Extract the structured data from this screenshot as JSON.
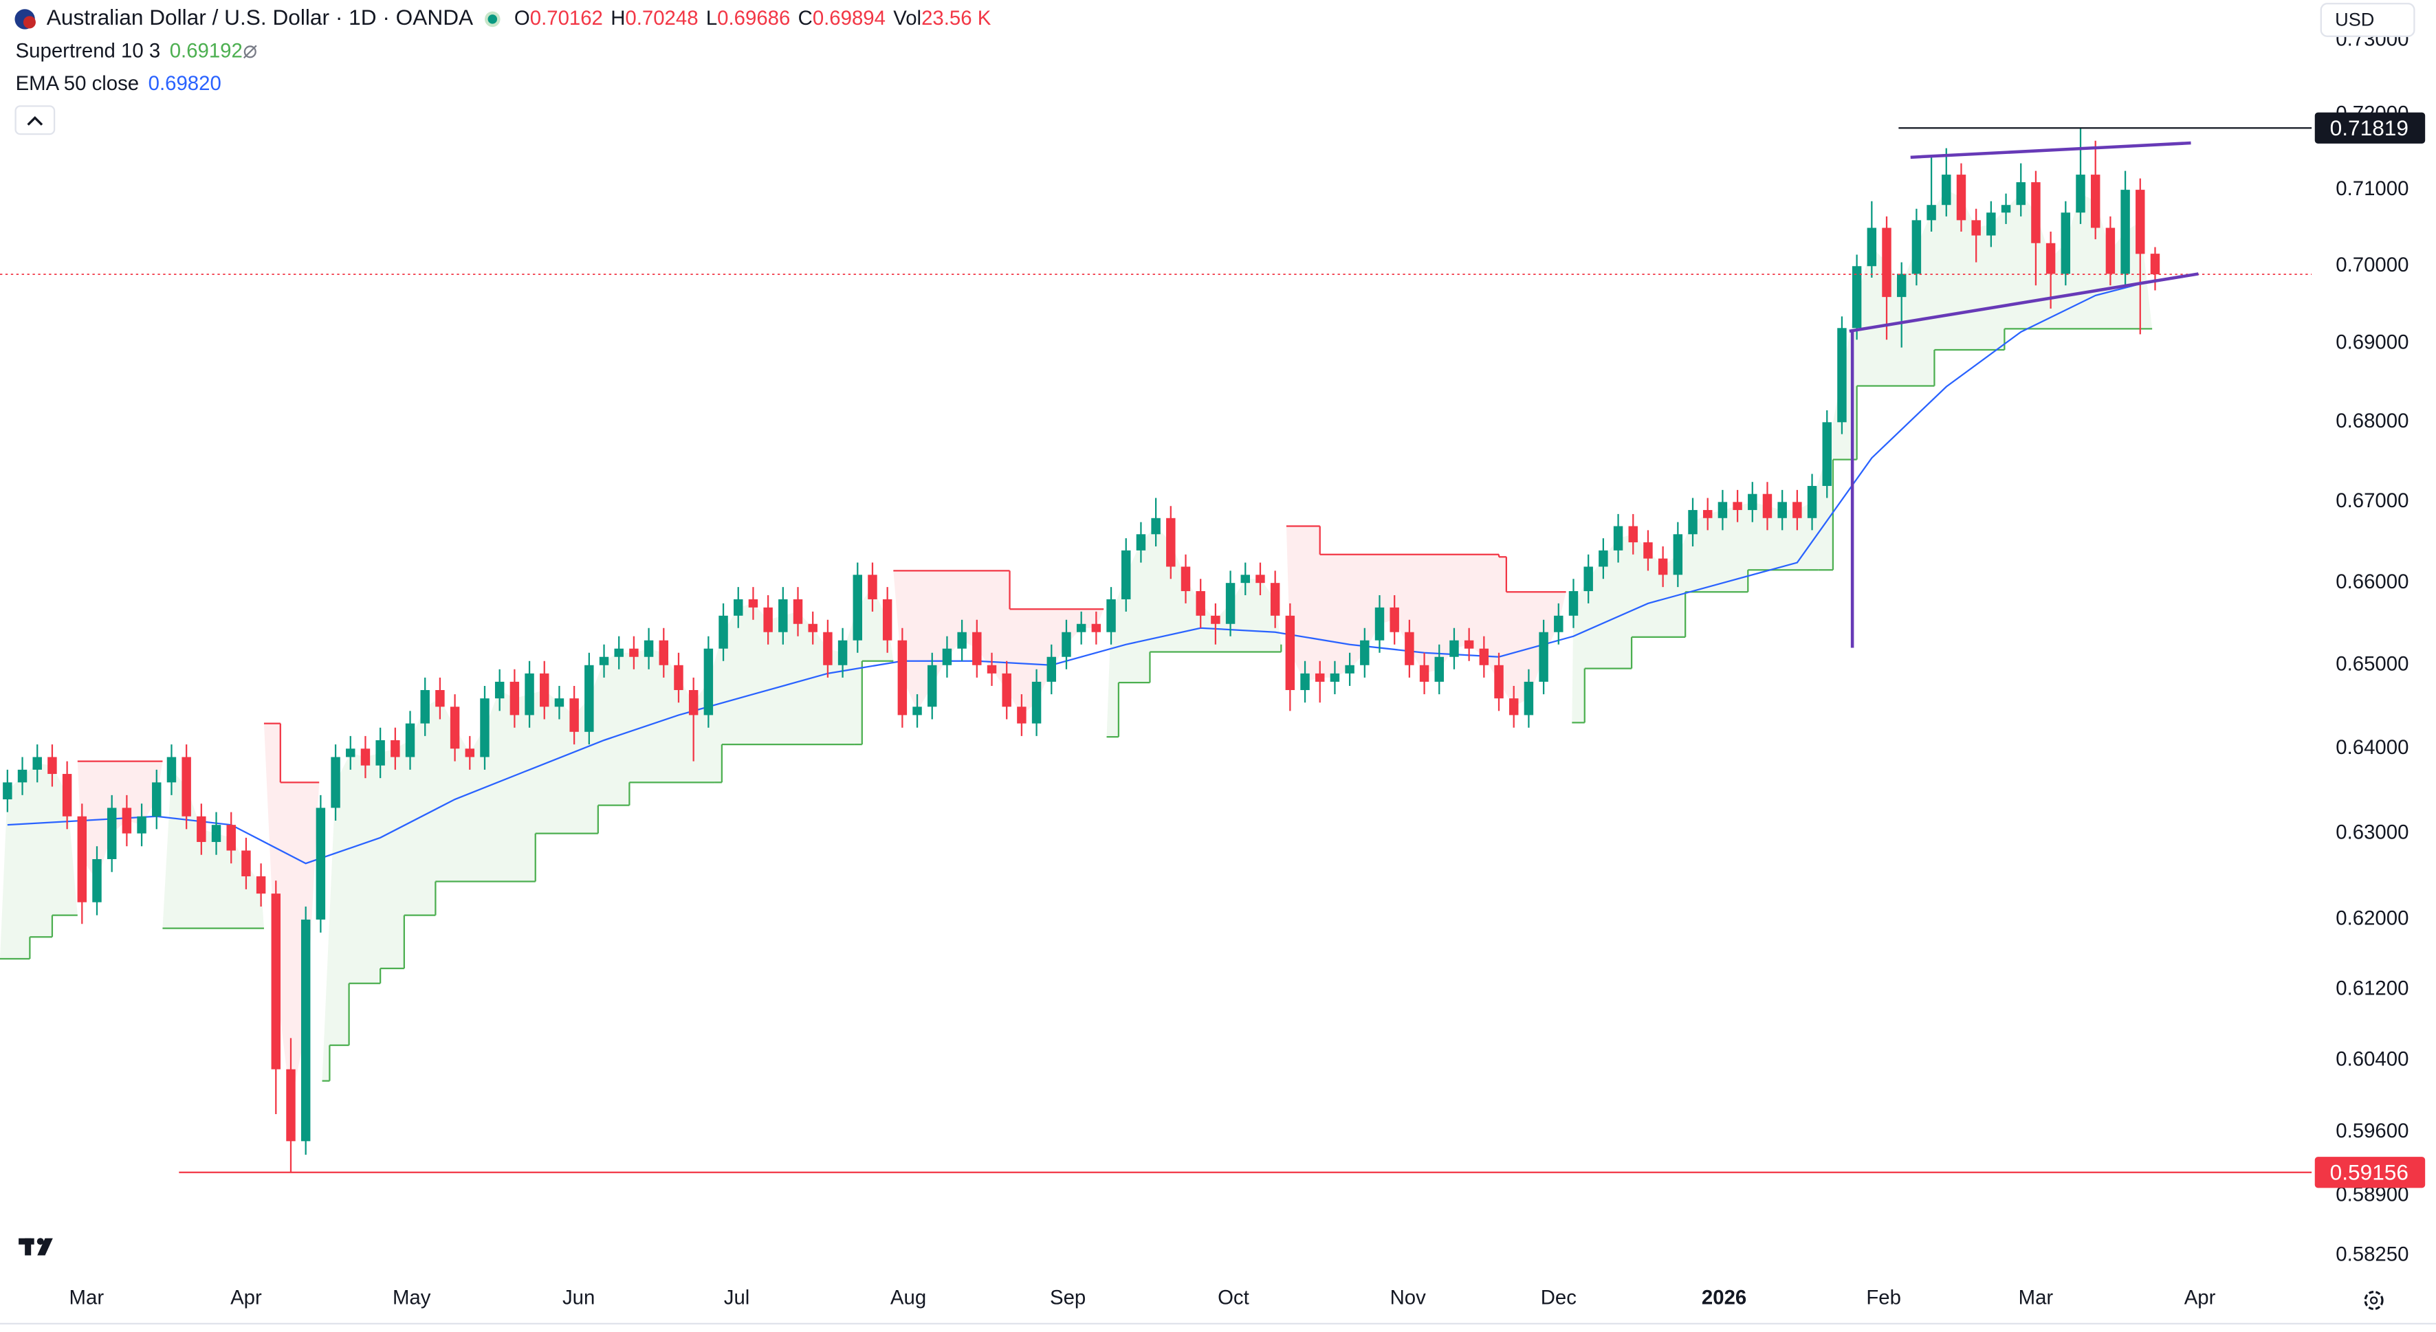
{
  "header": {
    "symbol": "Australian Dollar / U.S. Dollar · 1D · OANDA",
    "ohlc": [
      {
        "label": "O",
        "value": "0.70162"
      },
      {
        "label": "H",
        "value": "0.70248"
      },
      {
        "label": "L",
        "value": "0.69686"
      },
      {
        "label": "C",
        "value": "0.69894"
      },
      {
        "label": "Vol",
        "value": "23.56 K"
      }
    ],
    "indicators": [
      {
        "name": "Supertrend 10 3",
        "value": "0.69192",
        "color": "#4caf50"
      },
      {
        "name": "EMA 50 close",
        "value": "0.69820",
        "color": "#2962ff"
      }
    ],
    "currency": "USD"
  },
  "chart_data": {
    "type": "candlestick",
    "log_scale": true,
    "grid": false,
    "up_color": "#089981",
    "down_color": "#f23645",
    "xlim": [
      -0.5,
      154.5
    ],
    "ylim": [
      0.5805,
      0.7354
    ],
    "xticks": [
      {
        "value": 5.3,
        "label": "Mar"
      },
      {
        "value": 16,
        "label": "Apr"
      },
      {
        "value": 27.1,
        "label": "May"
      },
      {
        "value": 38.3,
        "label": "Jun"
      },
      {
        "value": 48.9,
        "label": "Jul"
      },
      {
        "value": 60.4,
        "label": "Aug"
      },
      {
        "value": 71.1,
        "label": "Sep"
      },
      {
        "value": 82.2,
        "label": "Oct"
      },
      {
        "value": 93.9,
        "label": "Nov"
      },
      {
        "value": 104,
        "label": "Dec"
      },
      {
        "value": 115.1,
        "label": "2026"
      },
      {
        "value": 125.8,
        "label": "Feb"
      },
      {
        "value": 136,
        "label": "Mar"
      },
      {
        "value": 147,
        "label": "Apr"
      }
    ],
    "yticks": [
      {
        "value": 0.5825,
        "label": "0.58250"
      },
      {
        "value": 0.589,
        "label": "0.58900"
      },
      {
        "value": 0.596,
        "label": "0.59600"
      },
      {
        "value": 0.604,
        "label": "0.60400"
      },
      {
        "value": 0.612,
        "label": "0.61200"
      },
      {
        "value": 0.62,
        "label": "0.62000"
      },
      {
        "value": 0.63,
        "label": "0.63000"
      },
      {
        "value": 0.64,
        "label": "0.64000"
      },
      {
        "value": 0.65,
        "label": "0.65000"
      },
      {
        "value": 0.66,
        "label": "0.66000"
      },
      {
        "value": 0.67,
        "label": "0.67000"
      },
      {
        "value": 0.68,
        "label": "0.68000"
      },
      {
        "value": 0.69,
        "label": "0.69000"
      },
      {
        "value": 0.7,
        "label": "0.70000"
      },
      {
        "value": 0.71,
        "label": "0.71000"
      },
      {
        "value": 0.72,
        "label": "0.72000"
      },
      {
        "value": 0.73,
        "label": "0.73000"
      }
    ],
    "ohlc": [
      [
        0.634,
        0.6375,
        0.6325,
        0.636
      ],
      [
        0.636,
        0.639,
        0.6345,
        0.6375
      ],
      [
        0.6375,
        0.6405,
        0.636,
        0.639
      ],
      [
        0.639,
        0.6405,
        0.6355,
        0.637
      ],
      [
        0.637,
        0.6385,
        0.6305,
        0.632
      ],
      [
        0.632,
        0.6335,
        0.6195,
        0.622
      ],
      [
        0.622,
        0.6285,
        0.6205,
        0.627
      ],
      [
        0.627,
        0.6345,
        0.6255,
        0.633
      ],
      [
        0.633,
        0.6345,
        0.6285,
        0.63
      ],
      [
        0.63,
        0.6335,
        0.6285,
        0.632
      ],
      [
        0.632,
        0.6375,
        0.6305,
        0.636
      ],
      [
        0.636,
        0.6405,
        0.6345,
        0.639
      ],
      [
        0.639,
        0.6405,
        0.6305,
        0.632
      ],
      [
        0.632,
        0.6335,
        0.6275,
        0.629
      ],
      [
        0.629,
        0.6325,
        0.6275,
        0.631
      ],
      [
        0.631,
        0.6325,
        0.6265,
        0.628
      ],
      [
        0.628,
        0.6295,
        0.6235,
        0.625
      ],
      [
        0.625,
        0.6265,
        0.6215,
        0.623
      ],
      [
        0.623,
        0.6245,
        0.598,
        0.603
      ],
      [
        0.603,
        0.6065,
        0.5916,
        0.595
      ],
      [
        0.595,
        0.6215,
        0.5935,
        0.62
      ],
      [
        0.62,
        0.6345,
        0.6185,
        0.633
      ],
      [
        0.633,
        0.6405,
        0.6315,
        0.639
      ],
      [
        0.639,
        0.6415,
        0.6375,
        0.64
      ],
      [
        0.64,
        0.6415,
        0.6365,
        0.638
      ],
      [
        0.638,
        0.6425,
        0.6365,
        0.641
      ],
      [
        0.641,
        0.6425,
        0.6375,
        0.639
      ],
      [
        0.639,
        0.6445,
        0.6375,
        0.643
      ],
      [
        0.643,
        0.6485,
        0.6415,
        0.647
      ],
      [
        0.647,
        0.6485,
        0.6435,
        0.645
      ],
      [
        0.645,
        0.6465,
        0.6385,
        0.64
      ],
      [
        0.64,
        0.6415,
        0.6375,
        0.639
      ],
      [
        0.639,
        0.6475,
        0.6375,
        0.646
      ],
      [
        0.646,
        0.6495,
        0.6445,
        0.648
      ],
      [
        0.648,
        0.6495,
        0.6425,
        0.644
      ],
      [
        0.644,
        0.6505,
        0.6425,
        0.649
      ],
      [
        0.649,
        0.6505,
        0.6435,
        0.645
      ],
      [
        0.645,
        0.6475,
        0.6435,
        0.646
      ],
      [
        0.646,
        0.6475,
        0.6405,
        0.642
      ],
      [
        0.642,
        0.6515,
        0.6405,
        0.65
      ],
      [
        0.65,
        0.6525,
        0.6485,
        0.651
      ],
      [
        0.651,
        0.6535,
        0.6495,
        0.652
      ],
      [
        0.652,
        0.6535,
        0.6495,
        0.651
      ],
      [
        0.651,
        0.6545,
        0.6495,
        0.653
      ],
      [
        0.653,
        0.6545,
        0.6485,
        0.65
      ],
      [
        0.65,
        0.6515,
        0.6455,
        0.647
      ],
      [
        0.647,
        0.6485,
        0.6385,
        0.644
      ],
      [
        0.644,
        0.6535,
        0.6425,
        0.652
      ],
      [
        0.652,
        0.6575,
        0.6505,
        0.656
      ],
      [
        0.656,
        0.6595,
        0.6545,
        0.658
      ],
      [
        0.658,
        0.6595,
        0.6555,
        0.657
      ],
      [
        0.657,
        0.6585,
        0.6525,
        0.654
      ],
      [
        0.654,
        0.6595,
        0.6525,
        0.658
      ],
      [
        0.658,
        0.6595,
        0.6535,
        0.655
      ],
      [
        0.655,
        0.6565,
        0.6525,
        0.654
      ],
      [
        0.654,
        0.6555,
        0.6485,
        0.65
      ],
      [
        0.65,
        0.6545,
        0.6485,
        0.653
      ],
      [
        0.653,
        0.6625,
        0.6515,
        0.661
      ],
      [
        0.661,
        0.6625,
        0.6565,
        0.658
      ],
      [
        0.658,
        0.6595,
        0.6515,
        0.653
      ],
      [
        0.653,
        0.6545,
        0.6425,
        0.644
      ],
      [
        0.644,
        0.6465,
        0.6425,
        0.645
      ],
      [
        0.645,
        0.6515,
        0.6435,
        0.65
      ],
      [
        0.65,
        0.6535,
        0.6485,
        0.652
      ],
      [
        0.652,
        0.6555,
        0.6505,
        0.654
      ],
      [
        0.654,
        0.6555,
        0.6485,
        0.65
      ],
      [
        0.65,
        0.6515,
        0.6475,
        0.649
      ],
      [
        0.649,
        0.6505,
        0.6435,
        0.645
      ],
      [
        0.645,
        0.6465,
        0.6415,
        0.643
      ],
      [
        0.643,
        0.6495,
        0.6415,
        0.648
      ],
      [
        0.648,
        0.6525,
        0.6465,
        0.651
      ],
      [
        0.651,
        0.6555,
        0.6495,
        0.654
      ],
      [
        0.654,
        0.6565,
        0.6525,
        0.655
      ],
      [
        0.655,
        0.6565,
        0.6525,
        0.654
      ],
      [
        0.654,
        0.6595,
        0.6525,
        0.658
      ],
      [
        0.658,
        0.6655,
        0.6565,
        0.664
      ],
      [
        0.664,
        0.6675,
        0.6625,
        0.666
      ],
      [
        0.666,
        0.6705,
        0.6645,
        0.668
      ],
      [
        0.668,
        0.6695,
        0.6605,
        0.662
      ],
      [
        0.662,
        0.6635,
        0.6575,
        0.659
      ],
      [
        0.659,
        0.6605,
        0.6545,
        0.656
      ],
      [
        0.656,
        0.6575,
        0.6525,
        0.655
      ],
      [
        0.655,
        0.6615,
        0.6535,
        0.66
      ],
      [
        0.66,
        0.6625,
        0.6585,
        0.661
      ],
      [
        0.661,
        0.6625,
        0.6585,
        0.66
      ],
      [
        0.66,
        0.6615,
        0.6545,
        0.656
      ],
      [
        0.656,
        0.6575,
        0.6445,
        0.647
      ],
      [
        0.647,
        0.6505,
        0.6455,
        0.649
      ],
      [
        0.649,
        0.6505,
        0.6455,
        0.648
      ],
      [
        0.648,
        0.6505,
        0.6465,
        0.649
      ],
      [
        0.649,
        0.6515,
        0.6475,
        0.65
      ],
      [
        0.65,
        0.6545,
        0.6485,
        0.653
      ],
      [
        0.653,
        0.6585,
        0.6515,
        0.657
      ],
      [
        0.657,
        0.6585,
        0.6525,
        0.654
      ],
      [
        0.654,
        0.6555,
        0.6485,
        0.65
      ],
      [
        0.65,
        0.6515,
        0.6465,
        0.648
      ],
      [
        0.648,
        0.6525,
        0.6465,
        0.651
      ],
      [
        0.651,
        0.6545,
        0.6495,
        0.653
      ],
      [
        0.653,
        0.6545,
        0.6505,
        0.652
      ],
      [
        0.652,
        0.6535,
        0.6485,
        0.65
      ],
      [
        0.65,
        0.6515,
        0.6445,
        0.646
      ],
      [
        0.646,
        0.6475,
        0.6425,
        0.644
      ],
      [
        0.644,
        0.6495,
        0.6425,
        0.648
      ],
      [
        0.648,
        0.6555,
        0.6465,
        0.654
      ],
      [
        0.654,
        0.6575,
        0.6525,
        0.656
      ],
      [
        0.656,
        0.6605,
        0.6545,
        0.659
      ],
      [
        0.659,
        0.6635,
        0.6575,
        0.662
      ],
      [
        0.662,
        0.6655,
        0.6605,
        0.664
      ],
      [
        0.664,
        0.6685,
        0.6625,
        0.667
      ],
      [
        0.667,
        0.6685,
        0.6635,
        0.665
      ],
      [
        0.665,
        0.6665,
        0.6615,
        0.663
      ],
      [
        0.663,
        0.6645,
        0.6595,
        0.661
      ],
      [
        0.661,
        0.6675,
        0.6595,
        0.666
      ],
      [
        0.666,
        0.6705,
        0.6645,
        0.669
      ],
      [
        0.669,
        0.6705,
        0.6665,
        0.668
      ],
      [
        0.668,
        0.6715,
        0.6665,
        0.67
      ],
      [
        0.67,
        0.6715,
        0.6675,
        0.669
      ],
      [
        0.669,
        0.6725,
        0.6675,
        0.671
      ],
      [
        0.671,
        0.6725,
        0.6665,
        0.668
      ],
      [
        0.668,
        0.6715,
        0.6665,
        0.67
      ],
      [
        0.67,
        0.6715,
        0.6665,
        0.668
      ],
      [
        0.668,
        0.6735,
        0.6665,
        0.672
      ],
      [
        0.672,
        0.6815,
        0.6705,
        0.68
      ],
      [
        0.68,
        0.6935,
        0.6785,
        0.692
      ],
      [
        0.692,
        0.7015,
        0.6905,
        0.7
      ],
      [
        0.7,
        0.7085,
        0.6985,
        0.705
      ],
      [
        0.705,
        0.7065,
        0.6905,
        0.696
      ],
      [
        0.696,
        0.7005,
        0.6895,
        0.699
      ],
      [
        0.699,
        0.7075,
        0.6975,
        0.706
      ],
      [
        0.706,
        0.7145,
        0.7045,
        0.708
      ],
      [
        0.708,
        0.7155,
        0.7065,
        0.712
      ],
      [
        0.712,
        0.7135,
        0.7045,
        0.706
      ],
      [
        0.706,
        0.7075,
        0.7005,
        0.704
      ],
      [
        0.704,
        0.7085,
        0.7025,
        0.707
      ],
      [
        0.707,
        0.7095,
        0.7055,
        0.708
      ],
      [
        0.708,
        0.7135,
        0.7065,
        0.711
      ],
      [
        0.711,
        0.7125,
        0.6975,
        0.703
      ],
      [
        0.703,
        0.7045,
        0.6945,
        0.699
      ],
      [
        0.699,
        0.7085,
        0.6975,
        0.707
      ],
      [
        0.707,
        0.7182,
        0.7055,
        0.712
      ],
      [
        0.712,
        0.7165,
        0.7035,
        0.705
      ],
      [
        0.705,
        0.7065,
        0.6975,
        0.699
      ],
      [
        0.699,
        0.7125,
        0.6975,
        0.71
      ],
      [
        0.71,
        0.7115,
        0.6912,
        0.7016
      ],
      [
        0.70162,
        0.70248,
        0.69686,
        0.69894
      ]
    ],
    "ema": {
      "color": "#2962ff",
      "x": [
        0,
        5,
        10,
        15,
        20,
        25,
        30,
        35,
        40,
        45,
        50,
        55,
        60,
        65,
        70,
        75,
        80,
        85,
        90,
        95,
        100,
        105,
        110,
        115,
        120,
        125,
        130,
        135,
        140,
        144
      ],
      "values": [
        0.631,
        0.6315,
        0.632,
        0.631,
        0.6265,
        0.6295,
        0.634,
        0.6375,
        0.641,
        0.644,
        0.6465,
        0.649,
        0.6505,
        0.6505,
        0.65,
        0.6525,
        0.6545,
        0.654,
        0.6525,
        0.6515,
        0.651,
        0.6535,
        0.6575,
        0.66,
        0.6625,
        0.6755,
        0.6845,
        0.6915,
        0.6962,
        0.6982
      ]
    },
    "supertrend": [
      {
        "trend": "up",
        "x": [
          -0.5,
          1.5,
          3,
          4.7
        ],
        "values": [
          0.6155,
          0.618,
          0.6205,
          0.6205
        ]
      },
      {
        "trend": "down",
        "x": [
          4.7,
          10.4
        ],
        "values": [
          0.6385,
          0.6385
        ]
      },
      {
        "trend": "up",
        "x": [
          10.4,
          17.2
        ],
        "values": [
          0.619,
          0.619
        ]
      },
      {
        "trend": "down",
        "x": [
          17.2,
          18.3,
          20.9
        ],
        "values": [
          0.643,
          0.636,
          0.636
        ]
      },
      {
        "trend": "up",
        "x": [
          21.1,
          21.6,
          22.9,
          25,
          26.6,
          28.7,
          35.4,
          39.6,
          41.7,
          47.4,
          47.9,
          56.8,
          57.3,
          59.4
        ],
        "values": [
          0.6017,
          0.6057,
          0.6127,
          0.6144,
          0.6205,
          0.6244,
          0.63,
          0.6333,
          0.636,
          0.636,
          0.6405,
          0.6405,
          0.6505,
          0.6505
        ]
      },
      {
        "trend": "down",
        "x": [
          59.4,
          67.2,
          73.5
        ],
        "values": [
          0.6615,
          0.6568,
          0.6568
        ]
      },
      {
        "trend": "up",
        "x": [
          73.7,
          74.5,
          76.6,
          85.4
        ],
        "values": [
          0.6414,
          0.6479,
          0.6516,
          0.6525
        ]
      },
      {
        "trend": "down",
        "x": [
          85.75,
          88,
          100,
          100.5,
          104.5
        ],
        "values": [
          0.667,
          0.6635,
          0.6632,
          0.6589,
          0.6589
        ]
      },
      {
        "trend": "up",
        "x": [
          104.9,
          105.75,
          108.9,
          112.5,
          116.7,
          121.4,
          122.4,
          124,
          129.2,
          133.9,
          143.8
        ],
        "values": [
          0.6431,
          0.6496,
          0.6534,
          0.6589,
          0.6616,
          0.6616,
          0.6753,
          0.6846,
          0.6892,
          0.6919,
          0.6919
        ]
      }
    ],
    "supertrend_colors": {
      "up": "#4caf50",
      "down": "#f23645"
    },
    "hlines": [
      {
        "value": 0.71819,
        "x_start": 126.8,
        "color": "#131722",
        "style": "solid"
      },
      {
        "value": 0.59156,
        "x_start": 11.5,
        "color": "#f23645",
        "style": "solid"
      },
      {
        "value": 0.69894,
        "x_start": -0.5,
        "color": "#f23645",
        "style": "dotted"
      }
    ],
    "drawings": [
      {
        "x": [
          127.6,
          146.4
        ],
        "values": [
          0.7143,
          0.7162
        ],
        "color": "#673ab7"
      },
      {
        "x": [
          123.5,
          146.9
        ],
        "values": [
          0.6916,
          0.699
        ],
        "color": "#673ab7"
      },
      {
        "x": [
          123.7,
          123.7
        ],
        "values": [
          0.6916,
          0.6521
        ],
        "color": "#673ab7"
      }
    ]
  }
}
